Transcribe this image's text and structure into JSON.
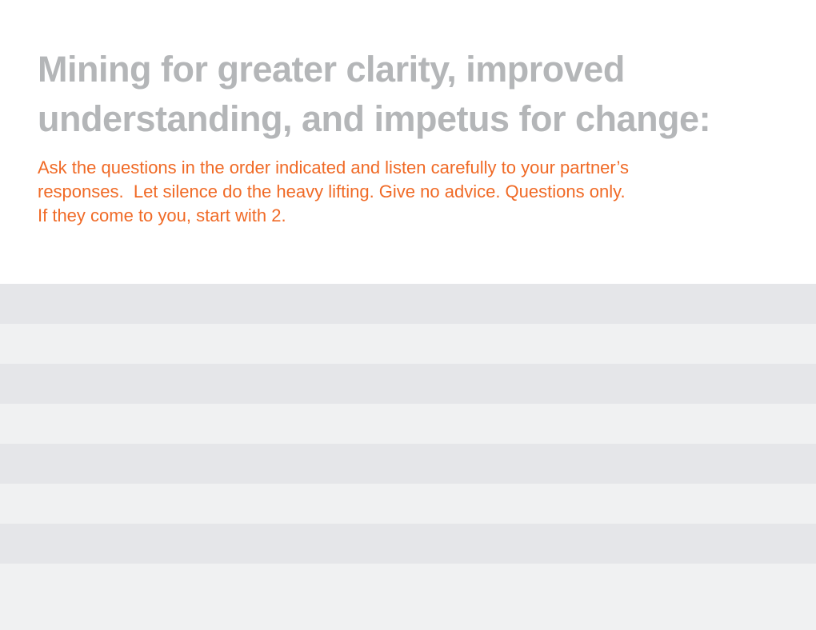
{
  "page": {
    "title": {
      "line1": "Mining for greater clarity, improved",
      "line2": "understanding, and impetus for change:"
    },
    "instructions": {
      "line1": "Ask the questions in the order indicated and listen carefully to your partner’s",
      "line2": "responses.  Let silence do the heavy lifting. Give no advice. Questions only.",
      "line3": "If they come to you, start with 2."
    }
  },
  "colors": {
    "background": "#ffffff",
    "title_gray": "#b4b6b8",
    "instructions_orange": "#f06a26",
    "row_dark": "#e5e6e9",
    "row_light": "#f0f1f2"
  }
}
